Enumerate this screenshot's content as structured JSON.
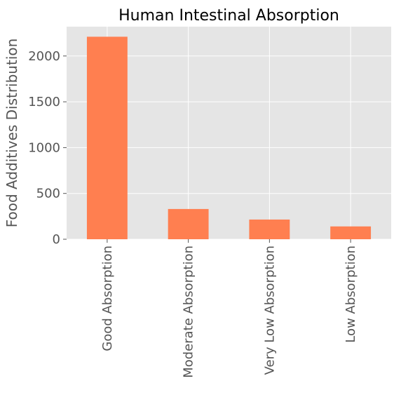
{
  "chart_data": {
    "type": "bar",
    "title": "Human Intestinal Absorption",
    "xlabel": "",
    "ylabel": "Food Additives Distribution",
    "categories": [
      "Good Absorption",
      "Moderate Absorption",
      "Very Low Absorption",
      "Low Absorption"
    ],
    "values": [
      2210,
      330,
      215,
      140
    ],
    "ylim": [
      0,
      2320
    ],
    "yticks": [
      0,
      500,
      1000,
      1500,
      2000
    ],
    "grid": true,
    "legend": "none",
    "colors": {
      "bar": "#ff7f50",
      "plot_background": "#e5e5e5",
      "grid": "#ffffff"
    }
  }
}
